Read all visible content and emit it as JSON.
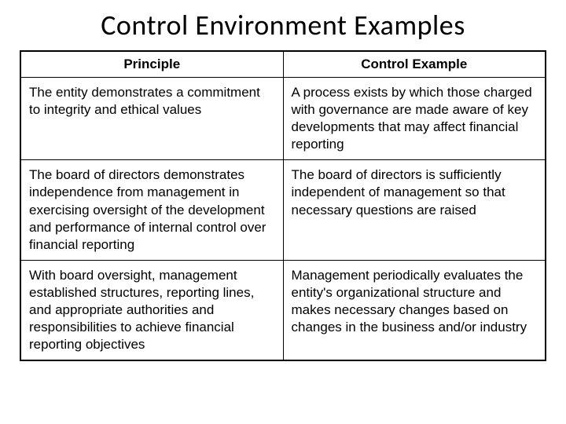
{
  "title": "Control Environment Examples",
  "table": {
    "columns": [
      "Principle",
      "Control Example"
    ],
    "rows": [
      [
        "The entity demonstrates a commitment to integrity and ethical values",
        "A process exists by which those charged with governance are made aware of key developments that may affect financial reporting"
      ],
      [
        "The board of directors demonstrates independence from management in exercising oversight of the development and performance of internal control over financial reporting",
        "The board of directors is sufficiently independent of management so that necessary questions are raised"
      ],
      [
        "With board oversight, management established structures, reporting lines, and appropriate authorities and responsibilities to achieve financial reporting objectives",
        "Management periodically evaluates the entity's organizational structure and makes necessary changes based on changes in the business and/or industry"
      ]
    ]
  },
  "colors": {
    "background": "#ffffff",
    "text": "#000000",
    "border": "#000000"
  },
  "typography": {
    "title_fontsize": 36,
    "title_font": "Calibri",
    "body_fontsize": 17,
    "body_font": "Verdana"
  }
}
